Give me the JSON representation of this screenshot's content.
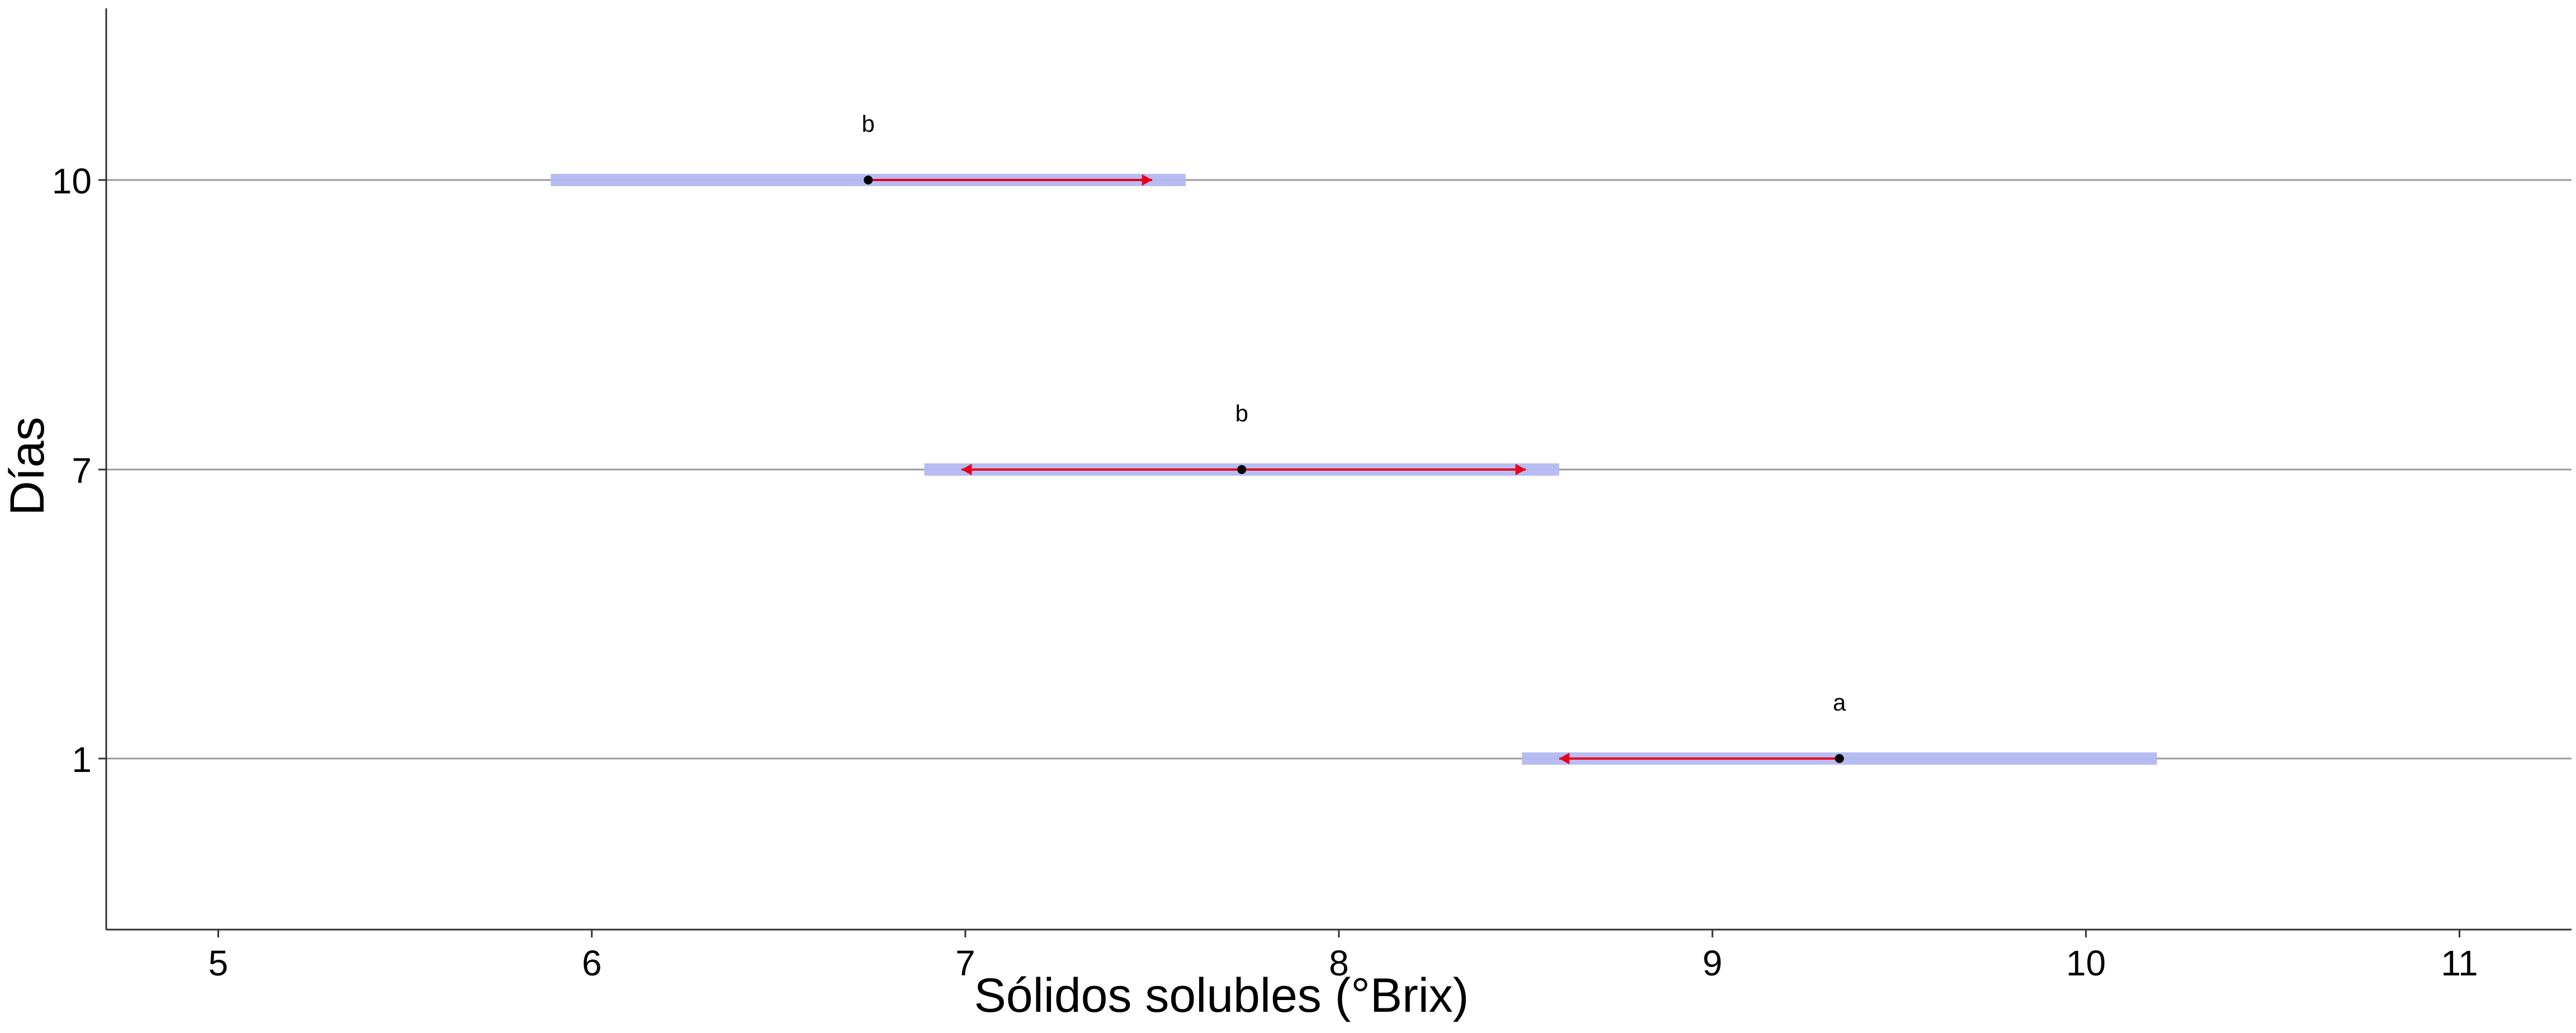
{
  "chart_data": {
    "type": "scatter",
    "title": "",
    "xlabel": "Sólidos solubles (°Brix)",
    "ylabel": "Días",
    "xlim": [
      4.7,
      11.3
    ],
    "x_ticks": [
      "5",
      "6",
      "7",
      "8",
      "9",
      "10",
      "11"
    ],
    "x_tick_values": [
      5,
      6,
      7,
      8,
      9,
      10,
      11
    ],
    "y_categories": [
      "1",
      "7",
      "10"
    ],
    "grid": "horizontal lines at each category",
    "legend": "none",
    "series": [
      {
        "day": "10",
        "mean": 6.74,
        "interval_low": 5.89,
        "interval_high": 7.59,
        "arrow_low": 6.74,
        "arrow_high": 7.5,
        "group_letter": "b"
      },
      {
        "day": "7",
        "mean": 7.74,
        "interval_low": 6.89,
        "interval_high": 8.59,
        "arrow_low": 6.99,
        "arrow_high": 8.5,
        "group_letter": "b"
      },
      {
        "day": "1",
        "mean": 9.34,
        "interval_low": 8.49,
        "interval_high": 10.19,
        "arrow_low": 8.59,
        "arrow_high": 9.34,
        "group_letter": "a"
      }
    ],
    "colors": {
      "interval_bar": "#b3b8f2",
      "arrow": "#e8001c",
      "point": "#000000",
      "gridline": "#9a9a9a",
      "axis": "#333333"
    }
  }
}
